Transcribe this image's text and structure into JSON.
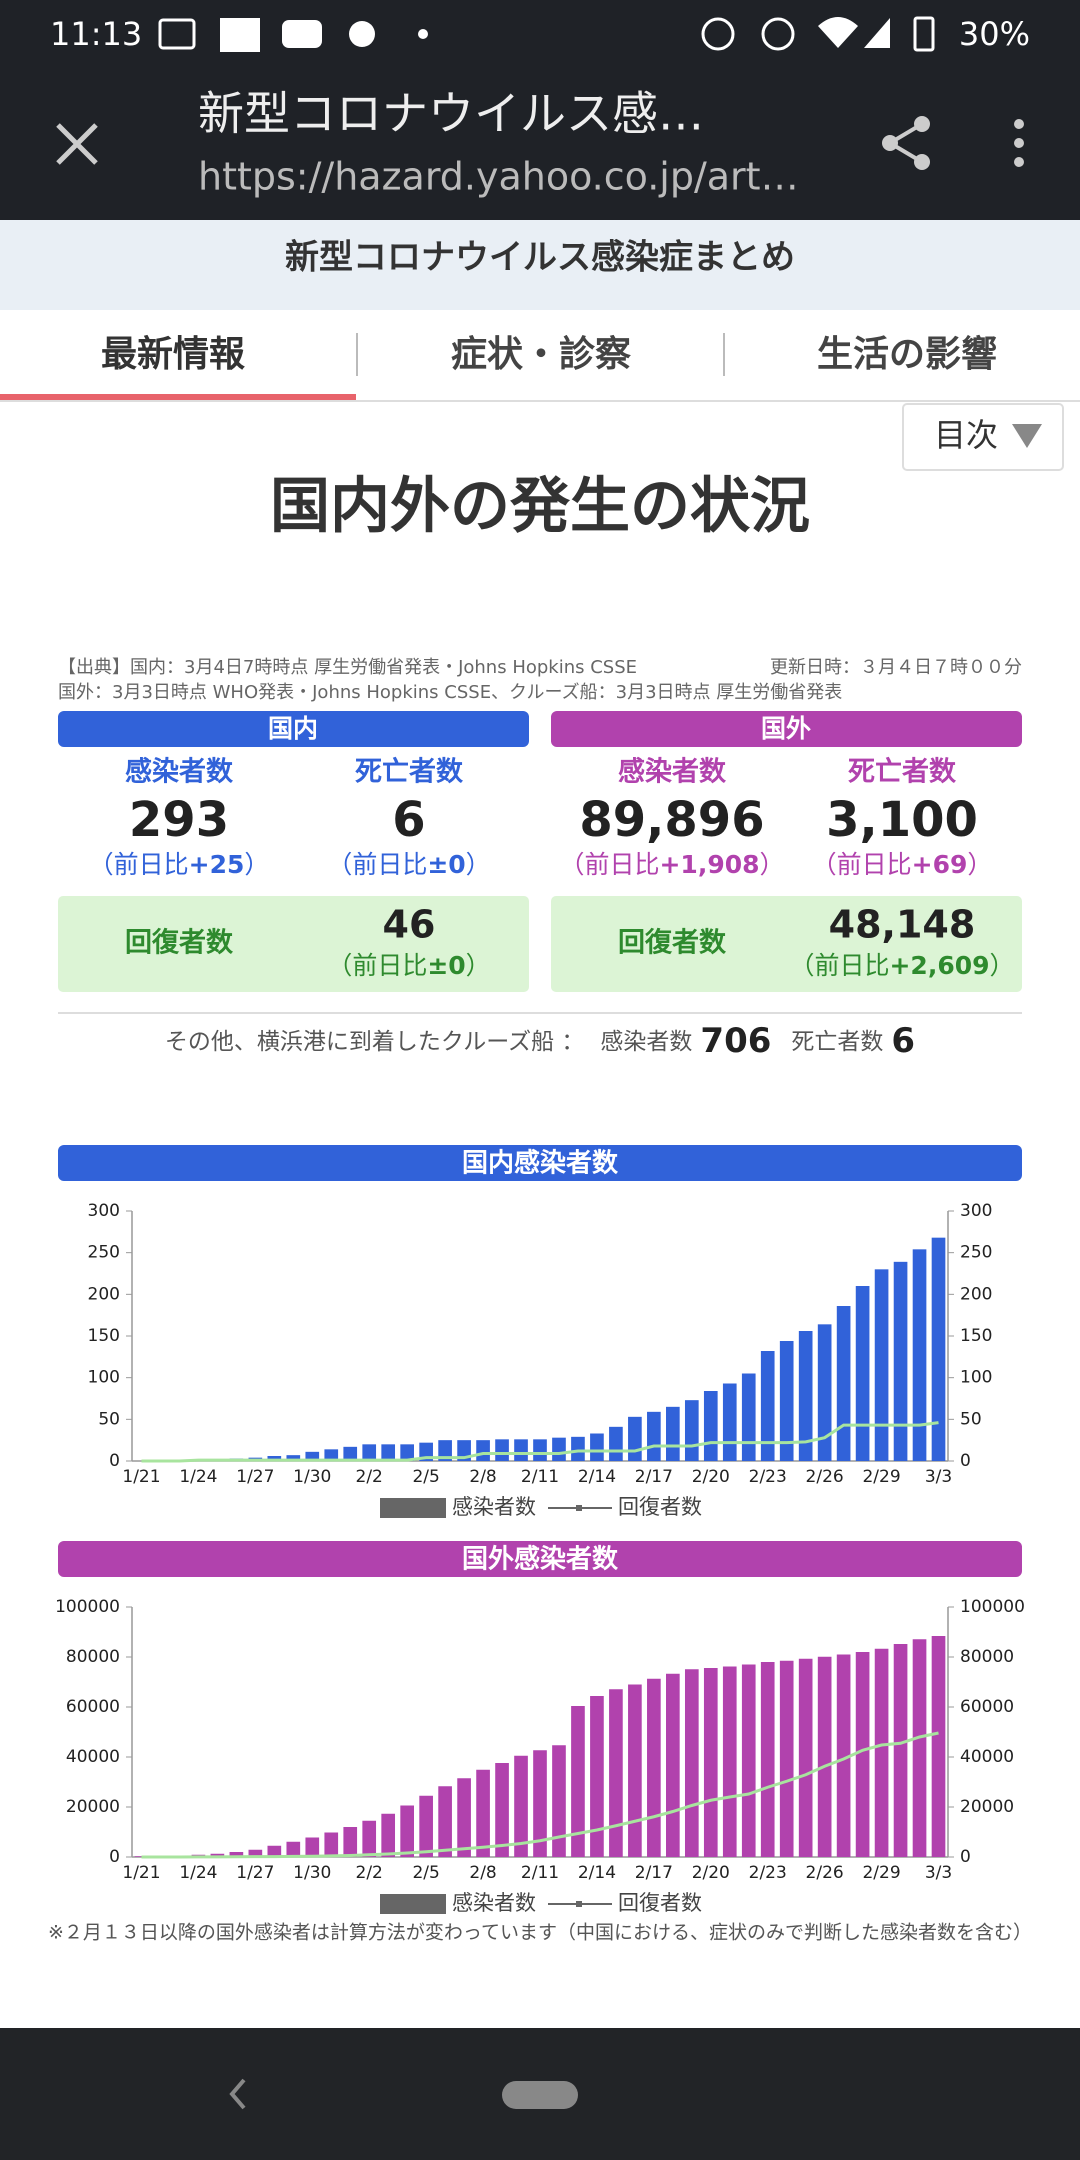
{
  "status_bar": {
    "time": "11:13",
    "battery": "30%"
  },
  "browser": {
    "title": "新型コロナウイルス感…",
    "url": "https://hazard.yahoo.co.jp/art…"
  },
  "site_title": "新型コロナウイルス感染症まとめ",
  "tabs": [
    "最新情報",
    "症状・診察",
    "生活の影響"
  ],
  "toc": "目次",
  "heading": "国内外の発生の状況",
  "source": {
    "domestic": "【出典】国内：3月4日7時時点 厚生労働省発表・Johns Hopkins CSSE",
    "updated": "更新日時：３月４日７時００分",
    "overseas": "国外：3月3日時点 WHO発表・Johns Hopkins CSSE、クルーズ船：3月3日時点 厚生労働省発表"
  },
  "change_prefix": "（前日比",
  "change_suffix": "）",
  "regions": [
    {
      "name": "国内",
      "color": "#3162d9",
      "cases_label": "感染者数",
      "cases": "293",
      "cases_change": "+25",
      "deaths_label": "死亡者数",
      "deaths": "6",
      "deaths_change": "±0",
      "recovered_label": "回復者数",
      "recovered": "46",
      "recovered_change": "±0"
    },
    {
      "name": "国外",
      "color": "#b142ad",
      "cases_label": "感染者数",
      "cases": "89,896",
      "cases_change": "+1,908",
      "deaths_label": "死亡者数",
      "deaths": "3,100",
      "deaths_change": "+69",
      "recovered_label": "回復者数",
      "recovered": "48,148",
      "recovered_change": "+2,609"
    }
  ],
  "cruise": {
    "label": "その他、横浜港に到着したクルーズ船 ：",
    "cases_label": "感染者数",
    "cases": "706",
    "deaths_label": "死亡者数",
    "deaths": "6"
  },
  "chart_data": [
    {
      "type": "bar",
      "title": "国内感染者数",
      "categories": [
        "1/21",
        null,
        null,
        "1/24",
        null,
        null,
        "1/27",
        null,
        null,
        "1/30",
        null,
        null,
        "2/2",
        null,
        null,
        "2/5",
        null,
        null,
        "2/8",
        null,
        null,
        "2/11",
        null,
        null,
        "2/14",
        null,
        null,
        "2/17",
        null,
        null,
        "2/20",
        null,
        null,
        "2/23",
        null,
        null,
        "2/26",
        null,
        null,
        "2/29",
        null,
        null,
        "3/3"
      ],
      "series": [
        {
          "name": "感染者数",
          "color": "#3162d9",
          "values": [
            0,
            0,
            0,
            1,
            2,
            3,
            4,
            6,
            7,
            11,
            14,
            17,
            20,
            20,
            20,
            22,
            25,
            25,
            25,
            26,
            26,
            26,
            28,
            29,
            33,
            41,
            53,
            59,
            65,
            73,
            84,
            93,
            105,
            132,
            144,
            156,
            164,
            186,
            210,
            230,
            239,
            254,
            268
          ]
        },
        {
          "name": "回復者数",
          "type": "line",
          "color": "#a8e49e",
          "values": [
            0,
            0,
            0,
            1,
            1,
            1,
            1,
            1,
            1,
            1,
            1,
            1,
            1,
            1,
            1,
            4,
            4,
            4,
            9,
            9,
            9,
            9,
            9,
            12,
            12,
            12,
            12,
            18,
            18,
            18,
            22,
            22,
            22,
            22,
            22,
            23,
            28,
            43,
            43,
            43,
            43,
            43,
            46
          ]
        }
      ],
      "ylim": [
        0,
        300
      ],
      "yticks": [
        0,
        50,
        100,
        150,
        200,
        250,
        300
      ],
      "y2lim": [
        0,
        300
      ],
      "y2ticks": [
        0,
        50,
        100,
        150,
        200,
        250,
        300
      ]
    },
    {
      "type": "bar",
      "title": "国外感染者数",
      "categories": [
        "1/21",
        null,
        null,
        "1/24",
        null,
        null,
        "1/27",
        null,
        null,
        "1/30",
        null,
        null,
        "2/2",
        null,
        null,
        "2/5",
        null,
        null,
        "2/8",
        null,
        null,
        "2/11",
        null,
        null,
        "2/14",
        null,
        null,
        "2/17",
        null,
        null,
        "2/20",
        null,
        null,
        "2/23",
        null,
        null,
        "2/26",
        null,
        null,
        "2/29",
        null,
        null,
        "3/3"
      ],
      "series": [
        {
          "name": "感染者数",
          "color": "#b142ad",
          "values": [
            300,
            450,
            600,
            900,
            1300,
            2000,
            2900,
            4500,
            6100,
            7800,
            9800,
            12000,
            14500,
            17300,
            20600,
            24500,
            28300,
            31500,
            34900,
            37600,
            40500,
            42700,
            44700,
            60400,
            64400,
            67100,
            69000,
            71300,
            73300,
            75100,
            75600,
            76200,
            77000,
            78000,
            78500,
            79300,
            80100,
            81000,
            82000,
            83300,
            85200,
            87100,
            88400
          ]
        },
        {
          "name": "回復者数",
          "type": "line",
          "color": "#a8e49e",
          "values": [
            0,
            0,
            0,
            50,
            60,
            100,
            130,
            170,
            230,
            280,
            450,
            600,
            900,
            1200,
            1600,
            2100,
            2700,
            3300,
            3900,
            4600,
            5400,
            6500,
            8000,
            9400,
            10800,
            12500,
            14300,
            16100,
            18200,
            20600,
            22700,
            24000,
            25200,
            27900,
            30300,
            32900,
            36300,
            39200,
            42700,
            44800,
            45500,
            48000,
            49600
          ]
        }
      ],
      "ylim": [
        0,
        100000
      ],
      "yticks": [
        0,
        20000,
        40000,
        60000,
        80000,
        100000
      ],
      "y2lim": [
        0,
        100000
      ],
      "y2ticks": [
        0,
        20000,
        40000,
        60000,
        80000,
        100000
      ],
      "note": "※２月１３日以降の国外感染者は計算方法が変わっています（中国における、症状のみで判断した感染者数を含む）"
    }
  ]
}
